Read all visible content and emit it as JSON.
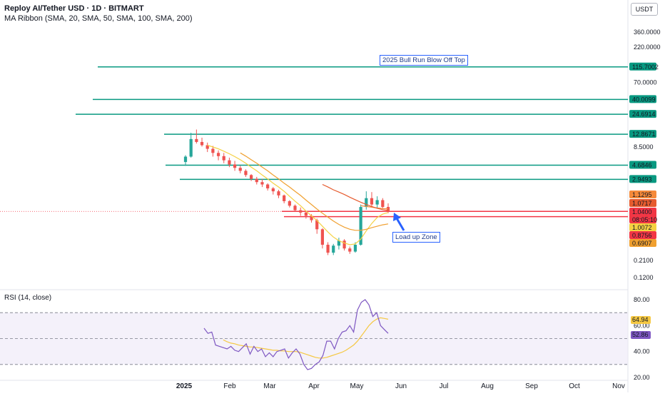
{
  "header": {
    "title": "Reploy AI/Tether USD · 1D · BITMART",
    "indicator": "MA Ribbon (SMA, 20, SMA, 50, SMA, 100, SMA, 200)",
    "currency": "USDT"
  },
  "rsi_title": "RSI (14, close)",
  "colors": {
    "up": "#26a69a",
    "down": "#ef5350",
    "level_green": "#089981",
    "level_red": "#f23645",
    "ma20": "#f5d142",
    "ma50": "#f0a030",
    "ma100": "#f58a3a",
    "ma200": "#e65b2e",
    "rsi": "#7e57c2",
    "rsi_ma": "#f5c842",
    "rsi_band": "#ede7f6"
  },
  "chart_data": {
    "type": "candlestick",
    "y_scale": "log",
    "ylim": [
      0.1,
      600
    ],
    "x_axis_labels": [
      "2025",
      "Feb",
      "Mar",
      "Apr",
      "May",
      "Jun",
      "Jul",
      "Aug",
      "Sep",
      "Oct",
      "Nov"
    ],
    "y_axis_labels": [
      "360.0000",
      "220.0000",
      "70.0000",
      "8.5000",
      "0.2100",
      "0.1200"
    ],
    "price_tags": [
      {
        "label": "115.7002",
        "value": 115.7002,
        "type": "level",
        "color": "#089981"
      },
      {
        "label": "40.0099",
        "value": 40.0099,
        "type": "level",
        "color": "#089981"
      },
      {
        "label": "24.6914",
        "value": 24.6914,
        "type": "level",
        "color": "#089981"
      },
      {
        "label": "12.8671",
        "value": 12.8671,
        "type": "level",
        "color": "#089981"
      },
      {
        "label": "4.6846",
        "value": 4.6846,
        "type": "level",
        "color": "#089981"
      },
      {
        "label": "2.9493",
        "value": 2.9493,
        "type": "level",
        "color": "#089981"
      },
      {
        "label": "1.1295",
        "value": 1.1295,
        "type": "tag",
        "color": "#f58a3a"
      },
      {
        "label": "1.0717",
        "value": 1.0717,
        "type": "tag",
        "color": "#e65b2e"
      },
      {
        "label": "1.0400",
        "value": 1.04,
        "type": "current",
        "color": "#f23645",
        "countdown": "08:05:10"
      },
      {
        "label": "1.0072",
        "value": 1.0072,
        "type": "tag",
        "color": "#f5d142"
      },
      {
        "label": "0.8756",
        "value": 0.8756,
        "type": "level",
        "color": "#f23645"
      },
      {
        "label": "0.6907",
        "value": 0.6907,
        "type": "tag",
        "color": "#f0a030"
      }
    ],
    "annotations": [
      "2025 Bull Run Blow Off Top",
      "Load up Zone"
    ],
    "candles": [
      {
        "o": 5.2,
        "h": 6.5,
        "l": 4.6,
        "c": 6.2
      },
      {
        "o": 6.2,
        "h": 13.5,
        "l": 6.0,
        "c": 11.0
      },
      {
        "o": 11.0,
        "h": 15.0,
        "l": 9.5,
        "c": 10.0
      },
      {
        "o": 10.0,
        "h": 11.5,
        "l": 8.6,
        "c": 9.0
      },
      {
        "o": 9.0,
        "h": 9.8,
        "l": 7.2,
        "c": 8.0
      },
      {
        "o": 8.0,
        "h": 8.8,
        "l": 6.2,
        "c": 7.0
      },
      {
        "o": 7.0,
        "h": 7.6,
        "l": 5.5,
        "c": 6.3
      },
      {
        "o": 6.3,
        "h": 7.0,
        "l": 5.0,
        "c": 5.5
      },
      {
        "o": 5.5,
        "h": 6.0,
        "l": 4.4,
        "c": 4.8
      },
      {
        "o": 4.8,
        "h": 5.4,
        "l": 3.9,
        "c": 4.3
      },
      {
        "o": 4.3,
        "h": 4.6,
        "l": 3.6,
        "c": 3.9
      },
      {
        "o": 3.9,
        "h": 4.1,
        "l": 3.2,
        "c": 3.4
      },
      {
        "o": 3.4,
        "h": 3.5,
        "l": 2.8,
        "c": 3.0
      },
      {
        "o": 3.0,
        "h": 3.2,
        "l": 2.5,
        "c": 2.7
      },
      {
        "o": 2.7,
        "h": 3.0,
        "l": 2.3,
        "c": 2.5
      },
      {
        "o": 2.5,
        "h": 2.6,
        "l": 2.05,
        "c": 2.2
      },
      {
        "o": 2.2,
        "h": 2.3,
        "l": 1.8,
        "c": 2.0
      },
      {
        "o": 2.0,
        "h": 2.1,
        "l": 1.6,
        "c": 1.75
      },
      {
        "o": 1.75,
        "h": 1.8,
        "l": 1.35,
        "c": 1.45
      },
      {
        "o": 1.45,
        "h": 1.5,
        "l": 1.18,
        "c": 1.25
      },
      {
        "o": 1.25,
        "h": 1.3,
        "l": 1.02,
        "c": 1.08
      },
      {
        "o": 1.08,
        "h": 1.18,
        "l": 0.9,
        "c": 1.0
      },
      {
        "o": 1.0,
        "h": 1.05,
        "l": 0.82,
        "c": 0.9
      },
      {
        "o": 0.9,
        "h": 0.95,
        "l": 0.72,
        "c": 0.78
      },
      {
        "o": 0.78,
        "h": 0.82,
        "l": 0.5,
        "c": 0.58
      },
      {
        "o": 0.58,
        "h": 0.6,
        "l": 0.31,
        "c": 0.35
      },
      {
        "o": 0.35,
        "h": 0.38,
        "l": 0.25,
        "c": 0.27
      },
      {
        "o": 0.27,
        "h": 0.36,
        "l": 0.25,
        "c": 0.34
      },
      {
        "o": 0.34,
        "h": 0.44,
        "l": 0.3,
        "c": 0.4
      },
      {
        "o": 0.4,
        "h": 0.42,
        "l": 0.29,
        "c": 0.31
      },
      {
        "o": 0.31,
        "h": 0.33,
        "l": 0.26,
        "c": 0.28
      },
      {
        "o": 0.28,
        "h": 0.38,
        "l": 0.27,
        "c": 0.35
      },
      {
        "o": 0.35,
        "h": 1.3,
        "l": 0.34,
        "c": 1.2
      },
      {
        "o": 1.2,
        "h": 2.0,
        "l": 1.1,
        "c": 1.6
      },
      {
        "o": 1.6,
        "h": 1.95,
        "l": 1.2,
        "c": 1.3
      },
      {
        "o": 1.3,
        "h": 1.7,
        "l": 1.15,
        "c": 1.5
      },
      {
        "o": 1.5,
        "h": 1.6,
        "l": 1.15,
        "c": 1.2
      },
      {
        "o": 1.2,
        "h": 1.35,
        "l": 0.98,
        "c": 1.04
      }
    ],
    "moving_averages": [
      {
        "name": "SMA 20",
        "color": "#f5d142",
        "values": [
          null,
          null,
          null,
          null,
          9.0,
          8.5,
          8.0,
          7.4,
          6.8,
          6.2,
          5.6,
          5.0,
          4.4,
          3.9,
          3.4,
          3.0,
          2.6,
          2.3,
          2.0,
          1.7,
          1.45,
          1.25,
          1.05,
          0.9,
          0.77,
          0.64,
          0.53,
          0.45,
          0.4,
          0.37,
          0.35,
          0.36,
          0.42,
          0.55,
          0.7,
          0.85,
          0.95,
          1.0
        ]
      },
      {
        "name": "SMA 50",
        "color": "#f0a030",
        "values": [
          null,
          null,
          null,
          null,
          null,
          null,
          null,
          null,
          null,
          null,
          7.0,
          6.3,
          5.6,
          5.0,
          4.4,
          3.9,
          3.4,
          3.0,
          2.6,
          2.3,
          2.0,
          1.75,
          1.5,
          1.3,
          1.12,
          0.98,
          0.86,
          0.76,
          0.68,
          0.62,
          0.58,
          0.56,
          0.56,
          0.58,
          0.61,
          0.64,
          0.67,
          0.69
        ]
      },
      {
        "name": "SMA 100",
        "color": "#f58a3a",
        "values": [
          null,
          null,
          null,
          null,
          null,
          null,
          null,
          null,
          null,
          null,
          null,
          null,
          null,
          null,
          null,
          null,
          null,
          null,
          null,
          null,
          null,
          null,
          null,
          null,
          null,
          null,
          null,
          null,
          null,
          null,
          null,
          null,
          1.25,
          1.22,
          1.19,
          1.16,
          1.14,
          1.13
        ]
      },
      {
        "name": "SMA 200",
        "color": "#e65b2e",
        "values": [
          null,
          null,
          null,
          null,
          null,
          null,
          null,
          null,
          null,
          null,
          null,
          null,
          null,
          null,
          null,
          null,
          null,
          null,
          null,
          null,
          null,
          null,
          null,
          null,
          null,
          2.5,
          2.3,
          2.1,
          1.95,
          1.8,
          1.65,
          1.52,
          1.4,
          1.3,
          1.22,
          1.15,
          1.1,
          1.07
        ]
      }
    ],
    "rsi": {
      "title": "RSI (14, close)",
      "ylim": [
        20,
        85
      ],
      "y_axis_labels": [
        "80.00",
        "60.00",
        "40.00",
        "20.00"
      ],
      "bands": [
        70,
        50,
        30
      ],
      "rsi_value_tag": "52.86",
      "ma_value_tag": "64.94",
      "values": [
        58,
        54,
        55,
        45,
        44,
        43,
        42,
        44,
        41,
        40,
        43,
        46,
        38,
        44,
        40,
        42,
        36,
        39,
        36,
        40,
        41,
        42,
        35,
        39,
        42,
        38,
        30,
        26,
        27,
        30,
        32,
        37,
        48,
        48,
        42,
        50,
        55,
        56,
        60,
        55,
        72,
        78,
        80,
        76,
        67,
        70,
        60,
        57,
        54
      ],
      "ma_values": [
        null,
        null,
        null,
        null,
        null,
        49.0,
        47.5,
        46.5,
        46.0,
        45.0,
        44.5,
        44.0,
        43.5,
        43.5,
        43.0,
        42.5,
        42.0,
        41.5,
        41.0,
        41.0,
        40.5,
        40.5,
        40.0,
        40.0,
        40.0,
        39.5,
        38.5,
        37.5,
        36.5,
        35.5,
        35.0,
        35.0,
        35.5,
        36.5,
        37.5,
        38.5,
        39.5,
        41.0,
        43.0,
        45.0,
        48.0,
        52.0,
        56.0,
        60.0,
        63.0,
        65.0,
        66.0,
        65.5,
        64.9
      ]
    }
  }
}
